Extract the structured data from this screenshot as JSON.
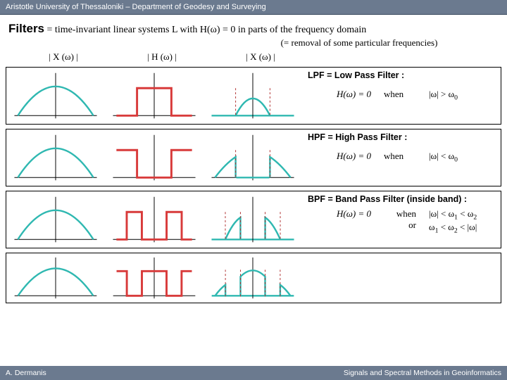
{
  "header": "Aristotle University of Thessaloniki – Department of Geodesy and Surveying",
  "title_prefix": "Filters",
  "title_rest": " = time-invariant linear systems  L  with  H(ω) = 0  in parts of the frequency domain",
  "subtitle": "(= removal of some particular frequencies)",
  "col_labels": {
    "x": "| X (ω) |",
    "h": "| H (ω) |",
    "xr": "| X (ω) |"
  },
  "footer_left": "A. Dermanis",
  "footer_right": "Signals and Spectral Methods in Geoinformatics",
  "colors": {
    "spectrum": "#2fb8b1",
    "filter": "#d83a3a",
    "axis": "#000000",
    "dashed": "#b03030",
    "header_bg": "#6b7a8f"
  },
  "filters": {
    "lpf": {
      "title": "LPF = Low Pass Filter :",
      "h_text": "H(ω) = 0",
      "when": "when",
      "cond_html": "|ω| > ω<span class='sub'>0</span>"
    },
    "hpf": {
      "title": "HPF = High Pass Filter :",
      "h_text": "H(ω) = 0",
      "when": "when",
      "cond_html": "|ω| < ω<span class='sub'>0</span>"
    },
    "bpf": {
      "title": "BPF = Band Pass Filter (inside band) :",
      "h_text": "H(ω) = 0",
      "when": "when<br>or",
      "cond_html": "|ω| < ω<span class='sub'>1</span> < ω<span class='sub'>2</span><br>ω<span class='sub'>1</span> < ω<span class='sub'>2</span> < |ω|"
    }
  }
}
